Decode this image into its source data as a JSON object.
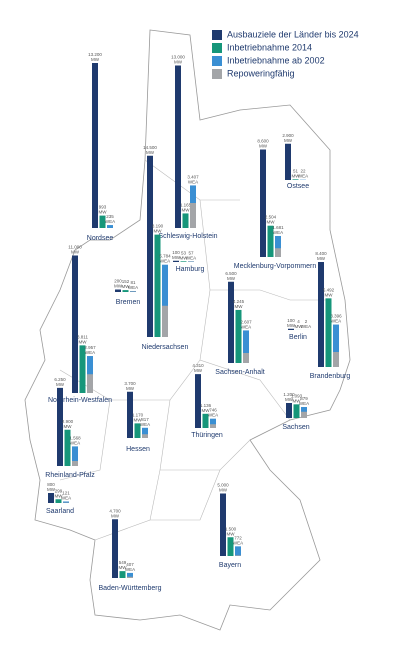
{
  "chart_data": {
    "type": "map-bar",
    "categories": [
      "Nordsee",
      "Schleswig-Holstein",
      "Ostsee",
      "Hamburg",
      "Bremen",
      "Niedersachsen",
      "Mecklenburg-Vorpommern",
      "Berlin",
      "Brandenburg",
      "Sachsen-Anhalt",
      "Nordrhein-Westfalen",
      "Thüringen",
      "Sachsen",
      "Hessen",
      "Rheinland-Pfalz",
      "Saarland",
      "Bayern",
      "Baden-Württemberg"
    ],
    "series": [
      {
        "name": "Ausbauziele der Länder bis 2024",
        "color": "#1f3a6e",
        "values": [
          13200,
          13000,
          2900,
          100,
          200,
          14500,
          8600,
          100,
          8400,
          6500,
          11000,
          4310,
          1200,
          3700,
          6250,
          800,
          5000,
          4700
        ],
        "value_labels": [
          "13.200 MW",
          "13.000 MW",
          "2.900 MW",
          "100 MW",
          "200 MW",
          "14.500 MW",
          "8.600 MW",
          "100 MW",
          "8.400 MW",
          "6.500 MW",
          "11.000 MW",
          "4.310 MW",
          "1.200 MW",
          "3.700 MW",
          "6.250 MW",
          "800 MW",
          "5.000 MW",
          "4.700 MW"
        ]
      },
      {
        "name": "Inbetriebnahme 2014",
        "color": "#16967a",
        "values": [
          993,
          1165,
          51,
          53,
          152,
          8190,
          2504,
          4,
          5492,
          4245,
          3811,
          1136,
          1093,
          1170,
          2900,
          299,
          1500,
          549
        ],
        "value_labels": [
          "993 MW",
          "1.165 MW",
          "51 MW",
          "53 MW",
          "152 MW",
          "8.190 MW",
          "2.504 MW",
          "4 MW",
          "5.492 MW",
          "4.245 MW",
          "3.811 MW",
          "1.136 MW",
          "1.093 MW",
          "1.170 MW",
          "2.900 MW",
          "299 MW",
          "1.500 MW",
          "549 MW"
        ]
      },
      {
        "name": "Inbetriebnahme ab 2002",
        "color": "#3a8fd3",
        "values": [
          235,
          3407,
          22,
          57,
          81,
          5784,
          1681,
          2,
          3396,
          2607,
          2957,
          746,
          879,
          817,
          1568,
          121,
          772,
          407
        ],
        "value_labels": [
          "235 WEA",
          "3.407 WEA",
          "22 WEA",
          "57 WEA",
          "81 WEA",
          "5.784 WEA",
          "1.681 WEA",
          "2 WEA",
          "3.396 WEA",
          "2.607 WEA",
          "2.957 WEA",
          "746 WEA",
          "879 WEA",
          "817 WEA",
          "1.568 WEA",
          "121 WEA",
          "772 WEA",
          "407 WEA"
        ]
      },
      {
        "name": "Repoweringfähig",
        "color": "#a3a5a8",
        "values": [
          0,
          2000,
          0,
          30,
          40,
          2500,
          700,
          0,
          1200,
          800,
          1500,
          300,
          500,
          300,
          400,
          30,
          50,
          100
        ]
      }
    ]
  }
}
